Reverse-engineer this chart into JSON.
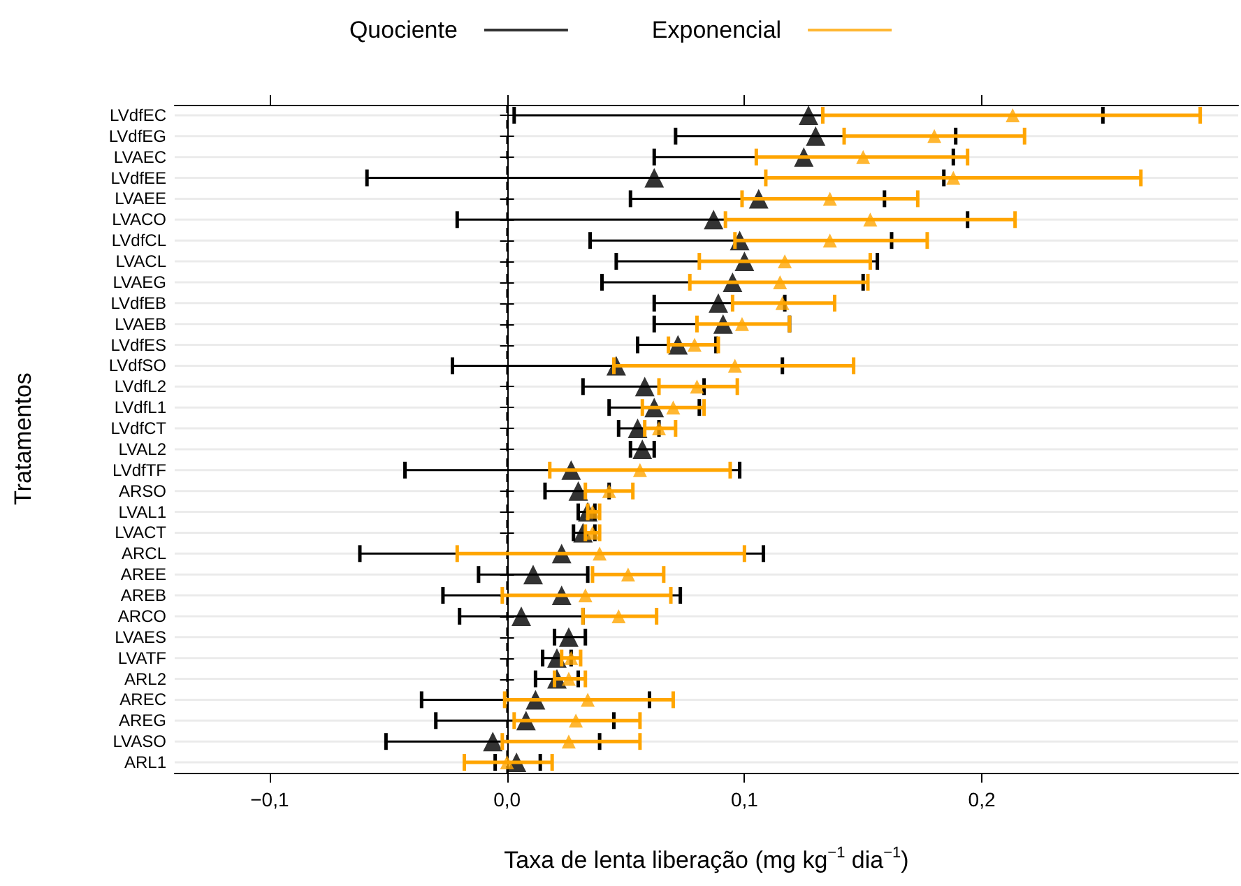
{
  "chart_data": {
    "type": "scatter",
    "orientation": "horizontal",
    "xlabel": "Taxa de lenta liberação (mg kg$^{−1}$ dia$^{−1}$)",
    "ylabel": "Tratamentos",
    "categories": [
      "LVdfEC",
      "LVdfEG",
      "LVAEC",
      "LVdfEE",
      "LVAEE",
      "LVACO",
      "LVdfCL",
      "LVACL",
      "LVAEG",
      "LVdfEB",
      "LVAEB",
      "LVdfES",
      "LVdfSO",
      "LVdfL2",
      "LVdfL1",
      "LVdfCT",
      "LVAL2",
      "LVdfTF",
      "ARSO",
      "LVAL1",
      "LVACT",
      "ARCL",
      "AREE",
      "AREB",
      "ARCO",
      "LVAES",
      "LVATF",
      "ARL2",
      "AREC",
      "AREG",
      "LVASO",
      "ARL1"
    ],
    "series": [
      {
        "name": "Quociente",
        "color": "#000000",
        "values": [
          0.127,
          0.13,
          0.125,
          0.062,
          0.106,
          0.087,
          0.098,
          0.1,
          0.095,
          0.089,
          0.091,
          0.072,
          0.046,
          0.058,
          0.062,
          0.055,
          0.057,
          0.027,
          0.03,
          0.034,
          0.032,
          0.023,
          0.011,
          0.023,
          0.006,
          0.026,
          0.021,
          0.021,
          0.012,
          0.008,
          -0.006,
          0.004
        ],
        "errors": [
          [
            0.003,
            0.251
          ],
          [
            0.071,
            0.189
          ],
          [
            0.062,
            0.188
          ],
          [
            -0.059,
            0.184
          ],
          [
            0.052,
            0.159
          ],
          [
            -0.021,
            0.194
          ],
          [
            0.035,
            0.162
          ],
          [
            0.046,
            0.156
          ],
          [
            0.04,
            0.15
          ],
          [
            0.062,
            0.117
          ],
          [
            0.062,
            0.119
          ],
          [
            0.055,
            0.088
          ],
          [
            -0.023,
            0.116
          ],
          [
            0.032,
            0.083
          ],
          [
            0.043,
            0.081
          ],
          [
            0.047,
            0.064
          ],
          [
            0.052,
            0.062
          ],
          [
            -0.043,
            0.098
          ],
          [
            0.016,
            0.043
          ],
          [
            0.03,
            0.037
          ],
          [
            0.028,
            0.037
          ],
          [
            -0.062,
            0.108
          ],
          [
            -0.012,
            0.034
          ],
          [
            -0.027,
            0.073
          ],
          [
            -0.02,
            0.032
          ],
          [
            0.02,
            0.033
          ],
          [
            0.015,
            0.027
          ],
          [
            0.012,
            0.03
          ],
          [
            -0.036,
            0.06
          ],
          [
            -0.03,
            0.045
          ],
          [
            -0.051,
            0.039
          ],
          [
            -0.005,
            0.014
          ]
        ]
      },
      {
        "name": "Exponencial",
        "color": "#ffa500",
        "values": [
          0.213,
          0.18,
          0.15,
          0.188,
          0.136,
          0.153,
          0.136,
          0.117,
          0.115,
          0.116,
          0.099,
          0.079,
          0.096,
          0.08,
          0.07,
          0.064,
          null,
          0.056,
          0.043,
          0.036,
          0.036,
          0.039,
          0.051,
          0.033,
          0.047,
          null,
          0.027,
          0.026,
          0.034,
          0.029,
          0.026,
          0.0
        ],
        "errors": [
          [
            0.133,
            0.292
          ],
          [
            0.142,
            0.218
          ],
          [
            0.105,
            0.194
          ],
          [
            0.109,
            0.267
          ],
          [
            0.099,
            0.173
          ],
          [
            0.092,
            0.214
          ],
          [
            0.096,
            0.177
          ],
          [
            0.081,
            0.153
          ],
          [
            0.077,
            0.152
          ],
          [
            0.095,
            0.138
          ],
          [
            0.08,
            0.119
          ],
          [
            0.068,
            0.089
          ],
          [
            0.045,
            0.146
          ],
          [
            0.064,
            0.097
          ],
          [
            0.057,
            0.083
          ],
          [
            0.058,
            0.071
          ],
          null,
          [
            0.018,
            0.094
          ],
          [
            0.033,
            0.053
          ],
          [
            0.034,
            0.039
          ],
          [
            0.033,
            0.039
          ],
          [
            -0.021,
            0.1
          ],
          [
            0.036,
            0.066
          ],
          [
            -0.002,
            0.069
          ],
          [
            0.032,
            0.063
          ],
          null,
          [
            0.023,
            0.031
          ],
          [
            0.02,
            0.033
          ],
          [
            -0.001,
            0.07
          ],
          [
            0.003,
            0.056
          ],
          [
            -0.002,
            0.056
          ],
          [
            -0.018,
            0.019
          ]
        ]
      }
    ],
    "xlim": [
      -0.14,
      0.308
    ],
    "xticks": [
      {
        "value": -0.1,
        "label": "−0,1"
      },
      {
        "value": 0,
        "label": "0,0"
      },
      {
        "value": 0.1,
        "label": "0,1"
      },
      {
        "value": 0.2,
        "label": "0,2"
      }
    ],
    "ref_lines": [
      {
        "axis": "x",
        "value": 0,
        "color": "#000000",
        "line_style": "dashed"
      }
    ],
    "marker": "triangle",
    "grid": "y",
    "legend": "top"
  }
}
